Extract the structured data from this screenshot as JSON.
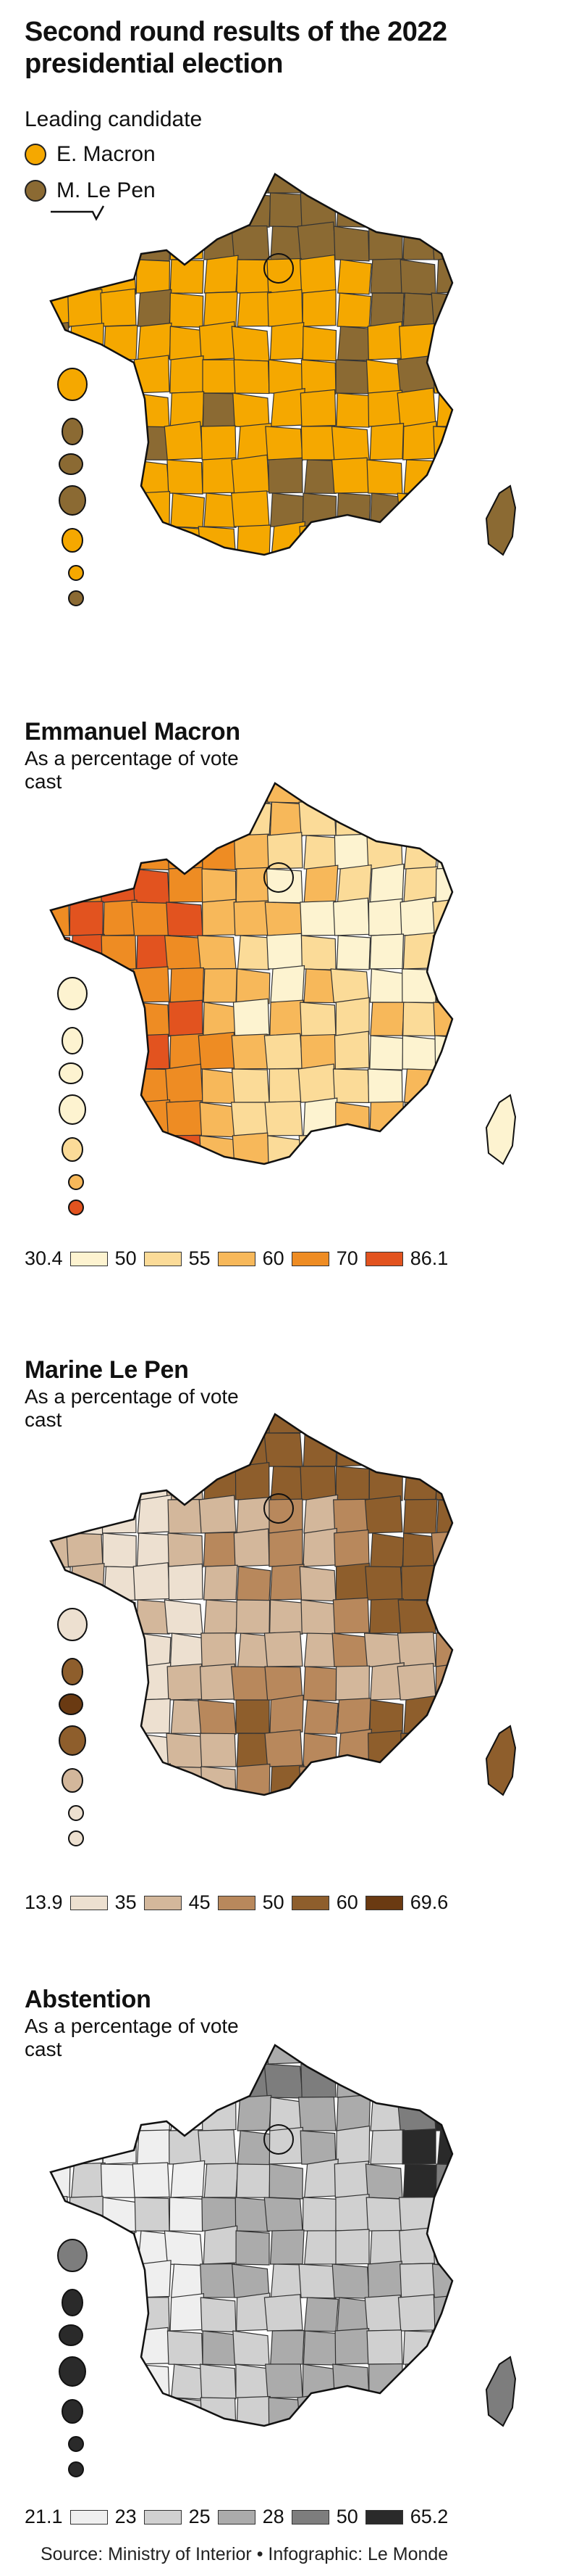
{
  "title": "Second round results of the 2022 presidential election",
  "map1": {
    "legend_caption": "Leading candidate",
    "items": [
      {
        "label": "E. Macron",
        "color": "#F5A800"
      },
      {
        "label": "M. Le Pen",
        "color": "#8B6A33"
      }
    ]
  },
  "map2": {
    "title": "Emmanuel Macron",
    "subtitle": "As a percentage of vote cast",
    "scale": [
      "30.4",
      "50",
      "55",
      "60",
      "70",
      "86.1"
    ],
    "colors": [
      "#FDF3D0",
      "#FBDB98",
      "#F7B85A",
      "#EE8C23",
      "#E2531F"
    ]
  },
  "map3": {
    "title": "Marine Le Pen",
    "subtitle": "As a percentage of vote cast",
    "scale": [
      "13.9",
      "35",
      "45",
      "50",
      "60",
      "69.6"
    ],
    "colors": [
      "#EDE0D0",
      "#D3B79B",
      "#B8885C",
      "#8E5E2C",
      "#6A3A12"
    ]
  },
  "map4": {
    "title": "Abstention",
    "subtitle": "As a percentage of vote cast",
    "scale": [
      "21.1",
      "23",
      "25",
      "28",
      "50",
      "65.2"
    ],
    "colors": [
      "#EFEFEF",
      "#D0D0D0",
      "#ABABAB",
      "#7D7D7D",
      "#2A2A2A"
    ]
  },
  "source": "Source: Ministry of Interior • Infographic: Le Monde"
}
